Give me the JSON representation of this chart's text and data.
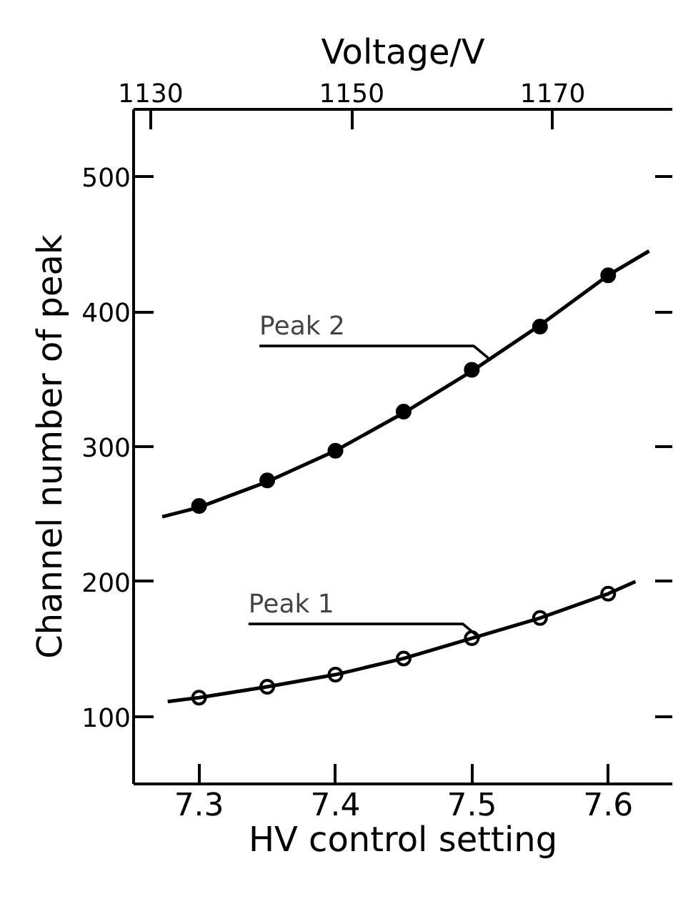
{
  "chart_data": {
    "type": "scatter",
    "xlabel": "HV control setting",
    "ylabel": "Channel number of peak",
    "x2label": "Voltage/V",
    "xlim": [
      7.252,
      7.647
    ],
    "xticks": [
      7.3,
      7.4,
      7.5,
      7.6
    ],
    "x2lim": [
      1128.3,
      1181.9
    ],
    "x2ticks": [
      1130,
      1150,
      1170
    ],
    "ylim": [
      50,
      550
    ],
    "yticks": [
      100,
      200,
      300,
      400,
      500
    ],
    "grid": false,
    "series": [
      {
        "marker": "circle",
        "color": "#000000",
        "x": [
          7.3,
          7.35,
          7.4,
          7.45,
          7.5,
          7.55,
          7.6
        ],
        "values": [
          256,
          275,
          297,
          326,
          357,
          389,
          427
        ]
      },
      {
        "marker": "circle_open",
        "color": "#000000",
        "x": [
          7.3,
          7.35,
          7.4,
          7.45,
          7.5,
          7.55,
          7.6
        ],
        "values": [
          114,
          122,
          131,
          143,
          158,
          173,
          191
        ]
      },
      {
        "type": "line",
        "line_style": "solid",
        "color": "#000000",
        "x": [
          7.273,
          7.3,
          7.35,
          7.4,
          7.45,
          7.5,
          7.55,
          7.6,
          7.63
        ],
        "values": [
          248,
          255,
          274,
          297,
          325,
          356,
          390,
          427,
          445
        ]
      },
      {
        "type": "line",
        "line_style": "solid",
        "color": "#000000",
        "x": [
          7.277,
          7.3,
          7.35,
          7.4,
          7.45,
          7.5,
          7.55,
          7.6,
          7.62
        ],
        "values": [
          111,
          114,
          122,
          131,
          143,
          158,
          173,
          191,
          200
        ]
      }
    ],
    "annotations": [
      {
        "text": "Peak 2",
        "x": 7.514,
        "y": 364
      },
      {
        "text": "Peak 1",
        "x": 7.506,
        "y": 158
      }
    ]
  }
}
